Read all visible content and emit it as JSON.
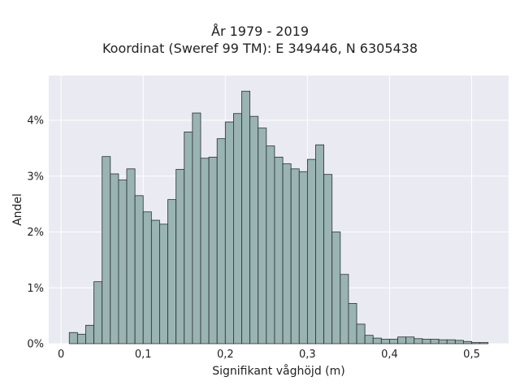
{
  "chart_data": {
    "type": "bar",
    "title": "År 1979 - 2019",
    "subtitle": "Koordinat (Sweref 99 TM): E 349446, N 6305438",
    "xlabel": "Signifikant våghöjd (m)",
    "ylabel": "Andel",
    "xlim": [
      -0.015,
      0.545
    ],
    "ylim": [
      0,
      0.048
    ],
    "x_ticks": [
      0,
      0.1,
      0.2,
      0.3,
      0.4,
      0.5
    ],
    "x_tick_labels": [
      "0",
      "0,1",
      "0,2",
      "0,3",
      "0,4",
      "0,5"
    ],
    "y_ticks": [
      0,
      0.01,
      0.02,
      0.03,
      0.04
    ],
    "y_tick_labels": [
      "0%",
      "1%",
      "2%",
      "3%",
      "4%"
    ],
    "bin_width": 0.01,
    "bin_starts": [
      0.01,
      0.02,
      0.03,
      0.04,
      0.05,
      0.06,
      0.07,
      0.08,
      0.09,
      0.1,
      0.11,
      0.12,
      0.13,
      0.14,
      0.15,
      0.16,
      0.17,
      0.18,
      0.19,
      0.2,
      0.21,
      0.22,
      0.23,
      0.24,
      0.25,
      0.26,
      0.27,
      0.28,
      0.29,
      0.3,
      0.31,
      0.32,
      0.33,
      0.34,
      0.35,
      0.36,
      0.37,
      0.38,
      0.39,
      0.4,
      0.41,
      0.42,
      0.43,
      0.44,
      0.45,
      0.46,
      0.47,
      0.48,
      0.49,
      0.5,
      0.51
    ],
    "values": [
      0.002,
      0.0017,
      0.0033,
      0.0111,
      0.0335,
      0.0304,
      0.0293,
      0.0313,
      0.0265,
      0.0236,
      0.0221,
      0.0214,
      0.0258,
      0.0312,
      0.0379,
      0.0413,
      0.0332,
      0.0334,
      0.0367,
      0.0397,
      0.0412,
      0.0452,
      0.0407,
      0.0386,
      0.0354,
      0.0334,
      0.0322,
      0.0313,
      0.0308,
      0.033,
      0.0356,
      0.0303,
      0.02,
      0.0124,
      0.0072,
      0.0035,
      0.0015,
      0.001,
      0.0008,
      0.0008,
      0.0012,
      0.0012,
      0.0009,
      0.0008,
      0.0008,
      0.0007,
      0.0007,
      0.0006,
      0.0004,
      0.0002,
      0.0002
    ],
    "bar_color": "#9ab3b3",
    "bar_edge_color": "#2a2f2f",
    "background_color": "#eaeaf2",
    "grid": true,
    "grid_color": "#ffffff"
  }
}
